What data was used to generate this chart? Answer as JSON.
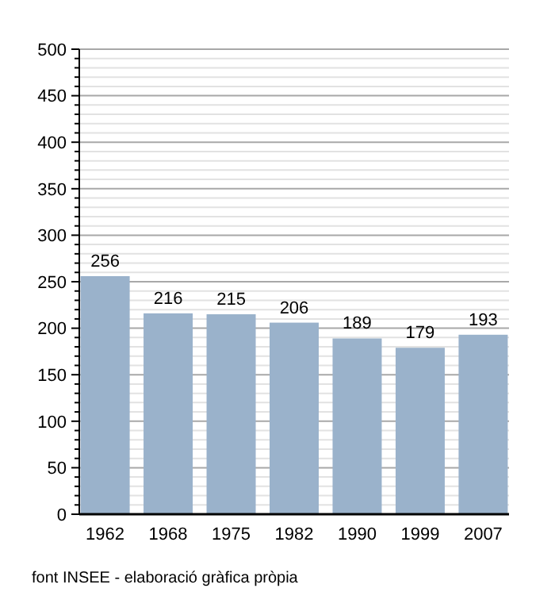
{
  "chart_data": {
    "type": "bar",
    "categories": [
      "1962",
      "1968",
      "1975",
      "1982",
      "1990",
      "1999",
      "2007"
    ],
    "values": [
      256,
      216,
      215,
      206,
      189,
      179,
      193
    ],
    "color": "#9ab2cb",
    "data_labels": true,
    "ylim": [
      0,
      500
    ],
    "yticks": [
      0,
      {
        "value": 10,
        "label": null
      },
      {
        "value": 20,
        "label": null
      },
      {
        "value": 30,
        "label": null
      },
      {
        "value": 40,
        "label": null
      },
      50,
      {
        "value": 60,
        "label": null
      },
      {
        "value": 70,
        "label": null
      },
      {
        "value": 80,
        "label": null
      },
      {
        "value": 90,
        "label": null
      },
      100,
      {
        "value": 110,
        "label": null
      },
      {
        "value": 120,
        "label": null
      },
      {
        "value": 130,
        "label": null
      },
      {
        "value": 140,
        "label": null
      },
      150,
      {
        "value": 160,
        "label": null
      },
      {
        "value": 170,
        "label": null
      },
      {
        "value": 180,
        "label": null
      },
      {
        "value": 190,
        "label": null
      },
      200,
      {
        "value": 210,
        "label": null
      },
      {
        "value": 220,
        "label": null
      },
      {
        "value": 230,
        "label": null
      },
      {
        "value": 240,
        "label": null
      },
      250,
      {
        "value": 260,
        "label": null
      },
      {
        "value": 270,
        "label": null
      },
      {
        "value": 280,
        "label": null
      },
      {
        "value": 290,
        "label": null
      },
      300,
      {
        "value": 310,
        "label": null
      },
      {
        "value": 320,
        "label": null
      },
      {
        "value": 330,
        "label": null
      },
      {
        "value": 340,
        "label": null
      },
      350,
      {
        "value": 360,
        "label": null
      },
      {
        "value": 370,
        "label": null
      },
      {
        "value": 380,
        "label": null
      },
      {
        "value": 390,
        "label": null
      },
      400,
      {
        "value": 410,
        "label": null
      },
      {
        "value": 420,
        "label": null
      },
      {
        "value": 430,
        "label": null
      },
      {
        "value": 440,
        "label": null
      },
      450,
      {
        "value": 460,
        "label": null
      },
      {
        "value": 470,
        "label": null
      },
      {
        "value": 480,
        "label": null
      },
      {
        "value": 490,
        "label": null
      },
      500
    ],
    "grid": "y",
    "annotations": [
      "font INSEE - elaboració gràfica pròpia"
    ]
  }
}
